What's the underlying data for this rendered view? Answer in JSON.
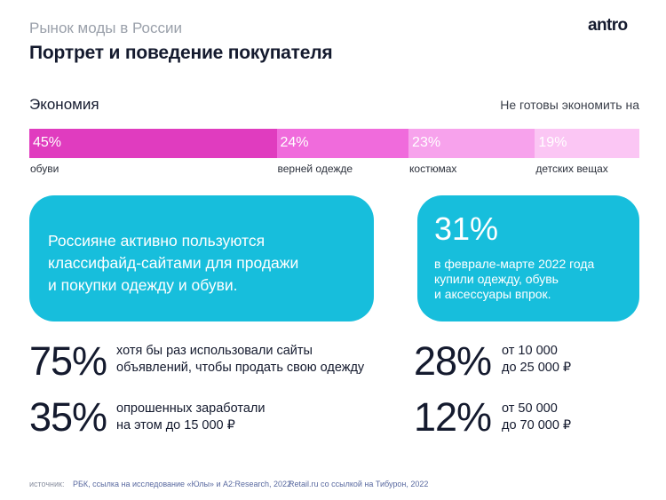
{
  "header": {
    "supertitle": "Рынок моды в России",
    "title": "Портрет и поведение покупателя",
    "logo": "antro"
  },
  "section": {
    "left_label": "Экономия",
    "right_label": "Не готовы экономить на"
  },
  "chart_data": {
    "type": "bar",
    "stacked": true,
    "orientation": "horizontal",
    "categories": [
      "обуви",
      "верней одежде",
      "костюмах",
      "детских вещах"
    ],
    "values": [
      45,
      24,
      23,
      19
    ],
    "value_labels": [
      "45%",
      "24%",
      "23%",
      "19%"
    ],
    "colors": [
      "#e03cbf",
      "#f06bdc",
      "#f7a2ec",
      "#fbc6f4"
    ]
  },
  "cards": {
    "left": {
      "line1": "Россияне активно пользуются",
      "line2": "классифайд-сайтами для продажи",
      "line3": "и покупки одежду и обуви."
    },
    "right": {
      "value": "31%",
      "line1": "в феврале-марте 2022 года",
      "line2": "купили одежду, обувь",
      "line3": "и аксессуары впрок."
    }
  },
  "stats": [
    {
      "value": "75%",
      "line1": "хотя бы раз использовали сайты",
      "line2": "объявлений, чтобы продать свою одежду"
    },
    {
      "value": "35%",
      "line1": "опрошенных заработали",
      "line2": "на этом до 15 000 ₽"
    },
    {
      "value": "28%",
      "line1": "от 10 000",
      "line2": "до 25 000 ₽"
    },
    {
      "value": "12%",
      "line1": "от 50 000",
      "line2": "до 70 000 ₽"
    }
  ],
  "footer": {
    "label": "источник:",
    "source1": "РБК, ссылка на исследование «Юлы» и A2:Research, 2022",
    "source2": "Retail.ru со ссылкой на Тибурон, 2022"
  }
}
